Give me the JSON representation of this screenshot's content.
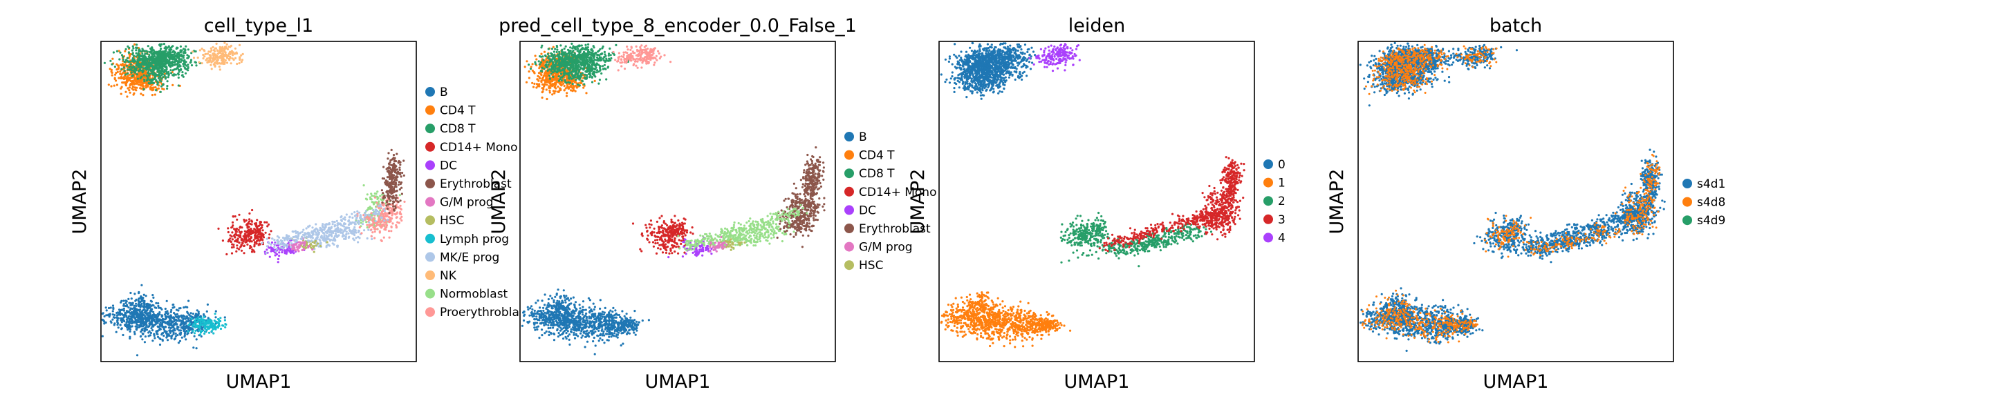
{
  "chart_data": [
    {
      "type": "scatter",
      "title": "cell_type_l1",
      "xlabel": "UMAP1",
      "ylabel": "UMAP2",
      "grid": false,
      "legend_position": "right",
      "series": [
        {
          "name": "B",
          "color": "#1f77b4"
        },
        {
          "name": "CD4 T",
          "color": "#ff7f0e"
        },
        {
          "name": "CD8 T",
          "color": "#279e68"
        },
        {
          "name": "CD14+ Mono",
          "color": "#d62728"
        },
        {
          "name": "DC",
          "color": "#aa40fc"
        },
        {
          "name": "Erythroblast",
          "color": "#8c564b"
        },
        {
          "name": "G/M prog",
          "color": "#e377c2"
        },
        {
          "name": "HSC",
          "color": "#b5bd61"
        },
        {
          "name": "Lymph prog",
          "color": "#17becf"
        },
        {
          "name": "MK/E prog",
          "color": "#aec7e8"
        },
        {
          "name": "NK",
          "color": "#ffbb78"
        },
        {
          "name": "Normoblast",
          "color": "#98df8a"
        },
        {
          "name": "Proerythroblast",
          "color": "#ff9896"
        }
      ]
    },
    {
      "type": "scatter",
      "title": "pred_cell_type_8_encoder_0.0_False_1",
      "xlabel": "UMAP1",
      "ylabel": "UMAP2",
      "grid": false,
      "legend_position": "right",
      "series": [
        {
          "name": "B",
          "color": "#1f77b4"
        },
        {
          "name": "CD4 T",
          "color": "#ff7f0e"
        },
        {
          "name": "CD8 T",
          "color": "#279e68"
        },
        {
          "name": "CD14+ Mono",
          "color": "#d62728"
        },
        {
          "name": "DC",
          "color": "#aa40fc"
        },
        {
          "name": "Erythroblast",
          "color": "#8c564b"
        },
        {
          "name": "G/M prog",
          "color": "#e377c2"
        },
        {
          "name": "HSC",
          "color": "#b5bd61"
        }
      ]
    },
    {
      "type": "scatter",
      "title": "leiden",
      "xlabel": "UMAP1",
      "ylabel": "UMAP2",
      "grid": false,
      "legend_position": "right",
      "series": [
        {
          "name": "0",
          "color": "#1f77b4"
        },
        {
          "name": "1",
          "color": "#ff7f0e"
        },
        {
          "name": "2",
          "color": "#279e68"
        },
        {
          "name": "3",
          "color": "#d62728"
        },
        {
          "name": "4",
          "color": "#aa40fc"
        }
      ]
    },
    {
      "type": "scatter",
      "title": "batch",
      "xlabel": "UMAP1",
      "ylabel": "UMAP2",
      "grid": false,
      "legend_position": "right",
      "series": [
        {
          "name": "s4d1",
          "color": "#1f77b4"
        },
        {
          "name": "s4d8",
          "color": "#ff7f0e"
        },
        {
          "name": "s4d9",
          "color": "#279e68"
        }
      ]
    }
  ]
}
